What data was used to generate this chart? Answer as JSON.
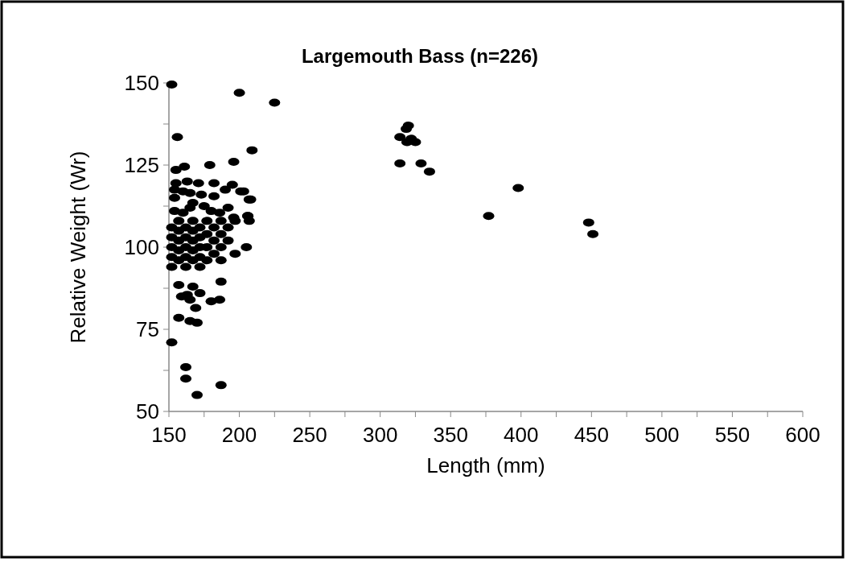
{
  "chart_data": {
    "type": "scatter",
    "title": "Largemouth Bass (n=226)",
    "xlabel": "Length (mm)",
    "ylabel": "Relative Weight (Wr)",
    "xlim": [
      150,
      600
    ],
    "ylim": [
      50,
      150
    ],
    "xticks": [
      150,
      {
        "value": 175,
        "label": null
      },
      200,
      {
        "value": 225,
        "label": null
      },
      250,
      {
        "value": 275,
        "label": null
      },
      300,
      {
        "value": 325,
        "label": null
      },
      350,
      {
        "value": 375,
        "label": null
      },
      400,
      {
        "value": 425,
        "label": null
      },
      450,
      {
        "value": 475,
        "label": null
      },
      500,
      {
        "value": 525,
        "label": null
      },
      550,
      {
        "value": 575,
        "label": null
      },
      600
    ],
    "yticks": [
      50,
      {
        "value": 62.5,
        "label": null
      },
      75,
      {
        "value": 87.5,
        "label": null
      },
      100,
      {
        "value": 112.5,
        "label": null
      },
      125,
      {
        "value": 137.5,
        "label": null
      },
      150
    ],
    "grid": false,
    "marker": "circle",
    "series": [
      {
        "color": "#000000",
        "x": [
          152,
          200,
          225,
          156,
          209,
          196,
          155,
          161,
          179,
          320,
          318.5,
          314,
          322,
          319,
          325,
          314,
          329,
          335,
          398,
          377,
          448,
          451,
          203,
          208,
          206,
          207,
          205,
          157,
          167,
          172,
          159,
          163,
          165,
          180,
          186,
          169,
          157,
          165,
          170,
          152,
          162,
          162,
          187,
          170,
          187,
          155,
          163,
          171,
          182,
          195,
          190,
          201,
          207,
          154,
          160,
          165,
          173,
          182,
          154,
          167,
          175,
          165,
          192,
          154,
          160,
          180,
          186,
          206,
          196,
          152,
          152,
          152,
          152,
          152,
          157,
          157,
          157,
          157,
          157,
          162,
          162,
          162,
          162,
          162,
          167,
          167,
          167,
          167,
          167,
          172,
          172,
          172,
          172,
          172,
          177,
          177,
          177,
          177,
          182,
          182,
          182,
          187,
          187,
          187,
          187,
          192,
          192,
          197,
          197
        ],
        "values": [
          149.5,
          147,
          144,
          133.5,
          129.5,
          126,
          123.5,
          124.5,
          125,
          137,
          136,
          133.5,
          133,
          132,
          132,
          125.5,
          125.5,
          123,
          118,
          109.5,
          107.5,
          104,
          117,
          114.5,
          109.5,
          108,
          100,
          88.5,
          88,
          86,
          85,
          85.5,
          84,
          83.5,
          84,
          81.5,
          78.5,
          77.5,
          77,
          71,
          63.5,
          60,
          58,
          55,
          89.5,
          119.5,
          120,
          119.5,
          119.5,
          119,
          117.5,
          117,
          114.5,
          117.5,
          117,
          116.5,
          116,
          115.5,
          115,
          113.5,
          112.5,
          112,
          112,
          111,
          110.5,
          111,
          110.5,
          109.5,
          109,
          106,
          103,
          100,
          97,
          94,
          108,
          105,
          102,
          99,
          96,
          106,
          103,
          100,
          97,
          94,
          108,
          105,
          102,
          99,
          96,
          106,
          103,
          100,
          97,
          94,
          108,
          104,
          100,
          96,
          106,
          102,
          98,
          108,
          104,
          100,
          96,
          106,
          102,
          108,
          98
        ]
      }
    ]
  }
}
